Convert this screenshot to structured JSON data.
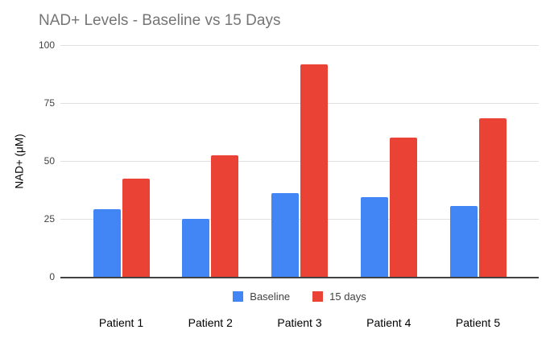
{
  "chart_data": {
    "type": "bar",
    "title": "NAD+ Levels - Baseline vs 15 Days",
    "categories": [
      "Patient 1",
      "Patient 2",
      "Patient 3",
      "Patient 4",
      "Patient 5"
    ],
    "series": [
      {
        "name": "Baseline",
        "color": "#4285F4",
        "values": [
          29,
          25,
          36,
          34.5,
          30.5
        ]
      },
      {
        "name": "15 days",
        "color": "#EA4335",
        "values": [
          42.5,
          52.5,
          91.5,
          60,
          68.5
        ]
      }
    ],
    "xlabel": "",
    "ylabel": "NAD+ (μM)",
    "yticks": [
      0,
      25,
      50,
      75,
      100
    ],
    "ylim": [
      0,
      100
    ],
    "grid": true,
    "legend_position": "bottom"
  },
  "colors": {
    "baseline_bar": "#4285F4",
    "fifteen_days_bar": "#EA4335",
    "title_text": "#757575",
    "axis_tick_text": "#424242",
    "legend_text": "#424242",
    "category_text": "#000000",
    "gridline": "#e0e0e0",
    "axis_line": "#424242",
    "background": "#ffffff"
  }
}
